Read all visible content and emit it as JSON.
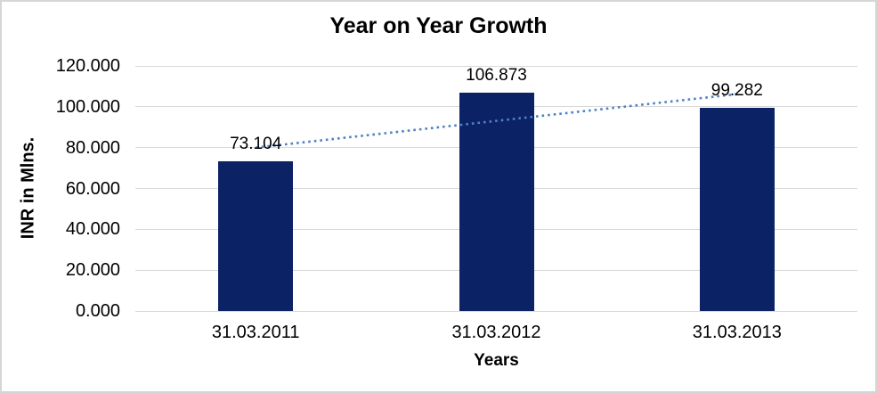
{
  "frame": {
    "background": "#ffffff",
    "border_color": "#d6d6d6"
  },
  "chart_data": {
    "type": "bar",
    "title": "Year on Year Growth",
    "xlabel": "Years",
    "ylabel": "INR in Mlns.",
    "categories": [
      "31.03.2011",
      "31.03.2012",
      "31.03.2013"
    ],
    "values": [
      73.104,
      106.873,
      99.282
    ],
    "value_labels": [
      "73.104",
      "106.873",
      "99.282"
    ],
    "ylim": [
      0,
      120
    ],
    "ytick_step": 20,
    "ytick_labels": [
      "0.000",
      "20.000",
      "40.000",
      "60.000",
      "80.000",
      "100.000",
      "120.000"
    ],
    "grid": true,
    "grid_color": "#d9d9d9",
    "bar_color": "#0b2265",
    "legend": false,
    "trendline": {
      "style": "dotted",
      "color": "#4e82c4",
      "start_value": 80.0,
      "end_value": 106.2
    }
  }
}
